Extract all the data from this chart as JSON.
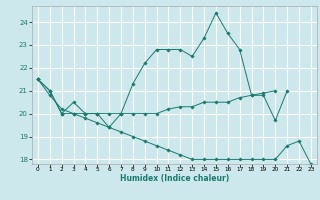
{
  "xlabel": "Humidex (Indice chaleur)",
  "bg_color": "#cce8ec",
  "grid_color": "#ffffff",
  "line_color": "#1a7a6e",
  "xlim": [
    -0.5,
    23.5
  ],
  "ylim": [
    17.8,
    24.7
  ],
  "yticks": [
    18,
    19,
    20,
    21,
    22,
    23,
    24
  ],
  "xticks": [
    0,
    1,
    2,
    3,
    4,
    5,
    6,
    7,
    8,
    9,
    10,
    11,
    12,
    13,
    14,
    15,
    16,
    17,
    18,
    19,
    20,
    21,
    22,
    23
  ],
  "series": [
    [
      21.5,
      21.0,
      20.0,
      20.5,
      20.0,
      20.0,
      19.4,
      20.0,
      21.3,
      22.2,
      22.8,
      22.8,
      22.8,
      22.5,
      23.3,
      24.4,
      23.5,
      22.8,
      20.8,
      20.8,
      19.7,
      21.0,
      null,
      null
    ],
    [
      21.5,
      21.0,
      20.0,
      20.0,
      20.0,
      20.0,
      20.0,
      20.0,
      20.0,
      20.0,
      20.0,
      20.2,
      20.3,
      20.3,
      20.5,
      20.5,
      20.5,
      20.7,
      20.8,
      20.9,
      21.0,
      null,
      null,
      null
    ],
    [
      21.5,
      20.8,
      20.2,
      20.0,
      19.8,
      19.6,
      19.4,
      19.2,
      19.0,
      18.8,
      18.6,
      18.4,
      18.2,
      18.0,
      18.0,
      18.0,
      18.0,
      18.0,
      18.0,
      18.0,
      18.0,
      18.6,
      18.8,
      17.8
    ]
  ]
}
